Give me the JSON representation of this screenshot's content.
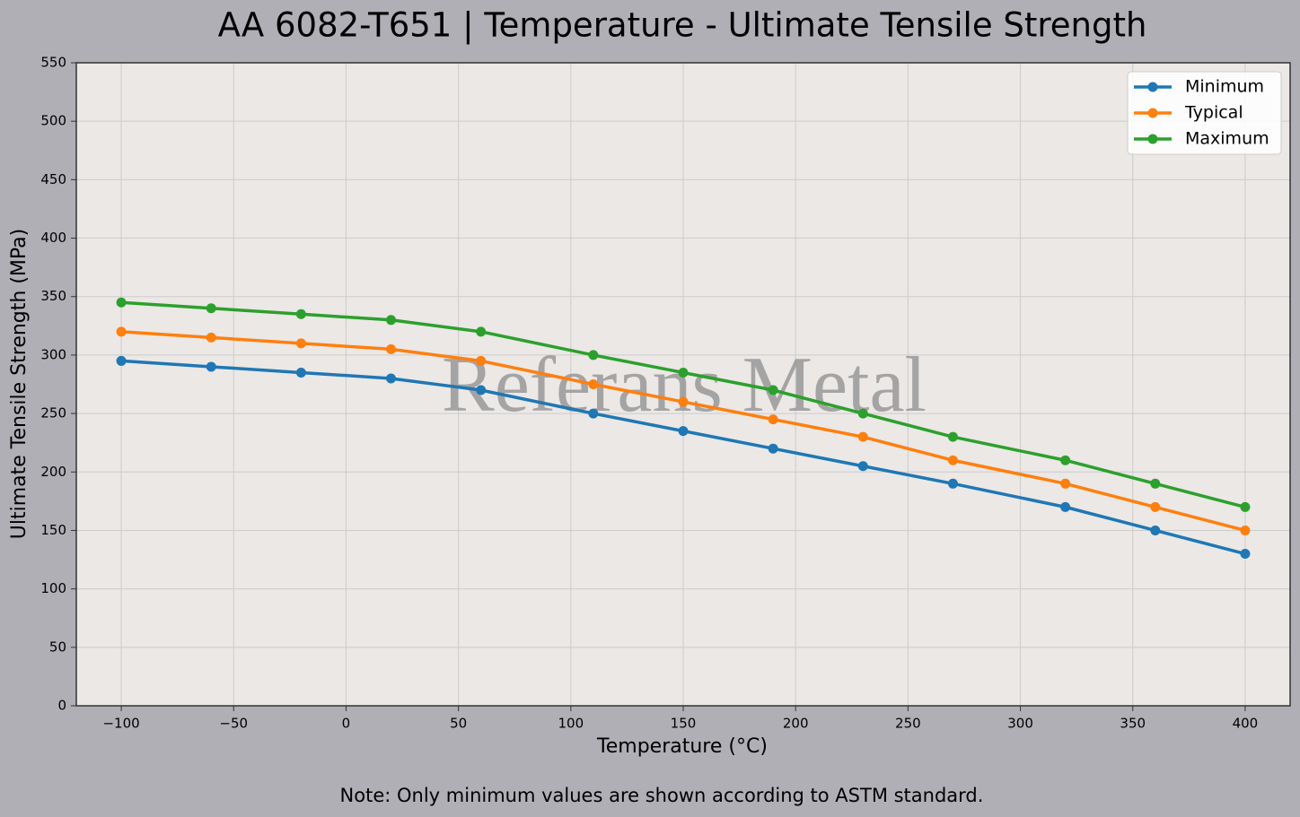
{
  "chart_data": {
    "type": "line",
    "title": "AA 6082-T651 | Temperature - Ultimate Tensile Strength",
    "x_label": "Temperature (°C)",
    "y_label": "Ultimate Tensile Strength (MPa)",
    "watermark": "Referans Metal",
    "note": "Note: Only minimum values are shown according to ASTM standard.",
    "x": [
      -100,
      -60,
      -20,
      20,
      60,
      110,
      150,
      190,
      230,
      270,
      320,
      360,
      400
    ],
    "series": [
      {
        "name": "Minimum",
        "color": "#1f77b4",
        "values": [
          295,
          290,
          285,
          280,
          270,
          250,
          235,
          220,
          205,
          190,
          170,
          150,
          130
        ]
      },
      {
        "name": "Typical",
        "color": "#ff7f0e",
        "values": [
          320,
          315,
          310,
          305,
          295,
          275,
          260,
          245,
          230,
          210,
          190,
          170,
          150
        ]
      },
      {
        "name": "Maximum",
        "color": "#2ca02c",
        "values": [
          345,
          340,
          335,
          330,
          320,
          300,
          285,
          270,
          250,
          230,
          210,
          190,
          170
        ]
      }
    ],
    "xlim": [
      -120,
      420
    ],
    "xticks": [
      {
        "value": -100,
        "label": "−100"
      },
      {
        "value": -50,
        "label": "−50"
      },
      0,
      50,
      100,
      150,
      200,
      250,
      300,
      350,
      400
    ],
    "ylim": [
      0,
      550
    ],
    "yticks": [
      0,
      50,
      100,
      150,
      200,
      250,
      300,
      350,
      400,
      450,
      500,
      550
    ],
    "grid": true,
    "legend": "upper right"
  }
}
